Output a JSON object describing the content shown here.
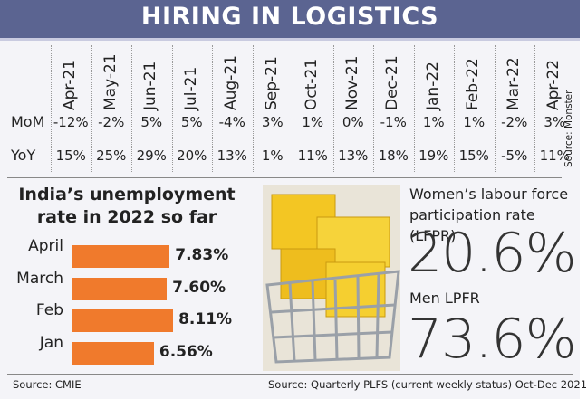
{
  "title": "HIRING IN LOGISTICS",
  "table": {
    "columns": [
      "Apr-21",
      "May-21",
      "Jun-21",
      "Jul-21",
      "Aug-21",
      "Sep-21",
      "Oct-21",
      "Nov-21",
      "Dec-21",
      "Jan-22",
      "Feb-22",
      "Mar-22",
      "Apr-22"
    ],
    "rows": [
      {
        "label": "MoM",
        "values": [
          "-12%",
          "-2%",
          "5%",
          "5%",
          "-4%",
          "3%",
          "1%",
          "0%",
          "-1%",
          "1%",
          "1%",
          "-2%",
          "3%"
        ]
      },
      {
        "label": "YoY",
        "values": [
          "15%",
          "25%",
          "29%",
          "20%",
          "13%",
          "1%",
          "11%",
          "13%",
          "18%",
          "19%",
          "15%",
          "-5%",
          "11%"
        ]
      }
    ],
    "source": "Source: Monster"
  },
  "chart_data": {
    "type": "bar",
    "orientation": "horizontal",
    "title": "India’s unemployment rate in 2022 so far",
    "categories": [
      "April",
      "March",
      "Feb",
      "Jan"
    ],
    "values": [
      7.83,
      7.6,
      8.11,
      6.56
    ],
    "value_labels": [
      "7.83%",
      "7.60%",
      "8.11%",
      "6.56%"
    ],
    "color": "#f07a2c",
    "source": "Source: CMIE"
  },
  "lfpr": {
    "women_label": "Women’s labour force participation rate (LFPR)",
    "women_value": "20.6%",
    "men_label": "Men LPFR",
    "men_value": "73.6%",
    "source": "Source: Quarterly PLFS (current weekly status) Oct-Dec 2021"
  }
}
